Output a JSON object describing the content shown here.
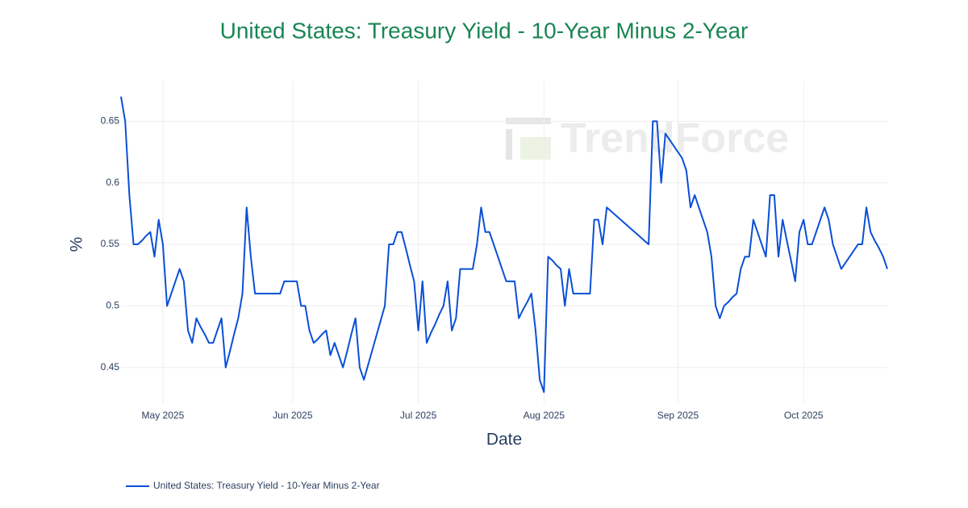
{
  "chart_data": {
    "type": "line",
    "title": "United States: Treasury Yield - 10-Year Minus 2-Year",
    "watermark": "TrendForce",
    "xlabel": "Date",
    "ylabel": "%",
    "categories": [
      null,
      null,
      null,
      null,
      null,
      null,
      null,
      null,
      null,
      null,
      "May 2025",
      null,
      null,
      null,
      null,
      null,
      null,
      null,
      null,
      null,
      null,
      null,
      null,
      null,
      null,
      null,
      null,
      null,
      null,
      null,
      null,
      null,
      null,
      null,
      null,
      null,
      null,
      null,
      null,
      null,
      null,
      "Jun 2025",
      null,
      null,
      null,
      null,
      null,
      null,
      null,
      null,
      null,
      null,
      null,
      null,
      null,
      null,
      null,
      null,
      null,
      null,
      null,
      null,
      null,
      null,
      null,
      null,
      null,
      null,
      null,
      null,
      null,
      "Jul 2025",
      null,
      null,
      null,
      null,
      null,
      null,
      null,
      null,
      null,
      null,
      null,
      null,
      null,
      null,
      null,
      null,
      null,
      null,
      null,
      null,
      null,
      null,
      null,
      null,
      null,
      null,
      null,
      null,
      null,
      "Aug 2025",
      null,
      null,
      null,
      null,
      null,
      null,
      null,
      null,
      null,
      null,
      null,
      null,
      null,
      null,
      null,
      null,
      null,
      null,
      null,
      null,
      null,
      null,
      null,
      null,
      null,
      null,
      null,
      null,
      null,
      null,
      null,
      "Sep 2025",
      null,
      null,
      null,
      null,
      null,
      null,
      null,
      null,
      null,
      null,
      null,
      null,
      null,
      null,
      null,
      null,
      null,
      null,
      null,
      null,
      null,
      null,
      null,
      null,
      null,
      null,
      null,
      null,
      null,
      "Oct 2025",
      null,
      null,
      null,
      null,
      null,
      null,
      null,
      null,
      null,
      null,
      null,
      null,
      null,
      null,
      null,
      null,
      null,
      null,
      null,
      null
    ],
    "series": [
      {
        "name": "United States: Treasury Yield - 10-Year Minus 2-Year",
        "color": "#0a4fd6",
        "values": [
          0.67,
          0.65,
          0.59,
          0.55,
          0.55,
          0.553,
          0.557,
          0.56,
          0.54,
          0.57,
          0.55,
          0.5,
          0.51,
          0.52,
          0.53,
          0.52,
          0.48,
          0.47,
          0.49,
          0.483,
          0.477,
          0.47,
          0.47,
          0.48,
          0.49,
          0.45,
          0.463,
          0.477,
          0.49,
          0.51,
          0.58,
          0.54,
          0.51,
          0.51,
          0.51,
          0.51,
          0.51,
          0.51,
          0.51,
          0.52,
          0.52,
          0.52,
          0.52,
          0.5,
          0.5,
          0.48,
          0.47,
          0.473,
          0.477,
          0.48,
          0.46,
          0.47,
          0.46,
          0.45,
          0.463,
          0.477,
          0.49,
          0.45,
          0.44,
          0.452,
          0.464,
          0.476,
          0.488,
          0.5,
          0.55,
          0.55,
          0.56,
          0.56,
          0.547,
          0.533,
          0.52,
          0.48,
          0.52,
          0.47,
          0.478,
          0.485,
          0.493,
          0.5,
          0.52,
          0.48,
          0.49,
          0.53,
          0.53,
          0.53,
          0.53,
          0.55,
          0.58,
          0.56,
          0.56,
          0.55,
          0.54,
          0.53,
          0.52,
          0.52,
          0.52,
          0.49,
          0.497,
          0.503,
          0.51,
          0.48,
          0.44,
          0.43,
          0.54,
          0.537,
          0.533,
          0.53,
          0.5,
          0.53,
          0.51,
          0.51,
          0.51,
          0.51,
          0.51,
          0.57,
          0.57,
          0.55,
          0.58,
          0.577,
          0.574,
          0.571,
          0.568,
          0.565,
          0.562,
          0.559,
          0.556,
          0.553,
          0.55,
          0.65,
          0.65,
          0.6,
          0.64,
          0.635,
          0.63,
          0.625,
          0.62,
          0.61,
          0.58,
          0.59,
          0.58,
          0.57,
          0.56,
          0.54,
          0.5,
          0.49,
          0.5,
          0.503,
          0.507,
          0.51,
          0.53,
          0.54,
          0.54,
          0.57,
          0.56,
          0.55,
          0.54,
          0.59,
          0.59,
          0.54,
          0.57,
          0.553,
          0.537,
          0.52,
          0.56,
          0.57,
          0.55,
          0.55,
          0.56,
          0.57,
          0.58,
          0.57,
          0.55,
          0.54,
          0.53,
          0.535,
          0.54,
          0.545,
          0.55,
          0.55,
          0.58,
          0.56,
          0.553,
          0.547,
          0.54,
          0.53
        ]
      }
    ],
    "ylim": [
      0.421,
      0.683
    ],
    "yticks": [
      0.45,
      0.5,
      0.55,
      0.6,
      0.65
    ],
    "grid": true,
    "legend": "bottom-left"
  }
}
